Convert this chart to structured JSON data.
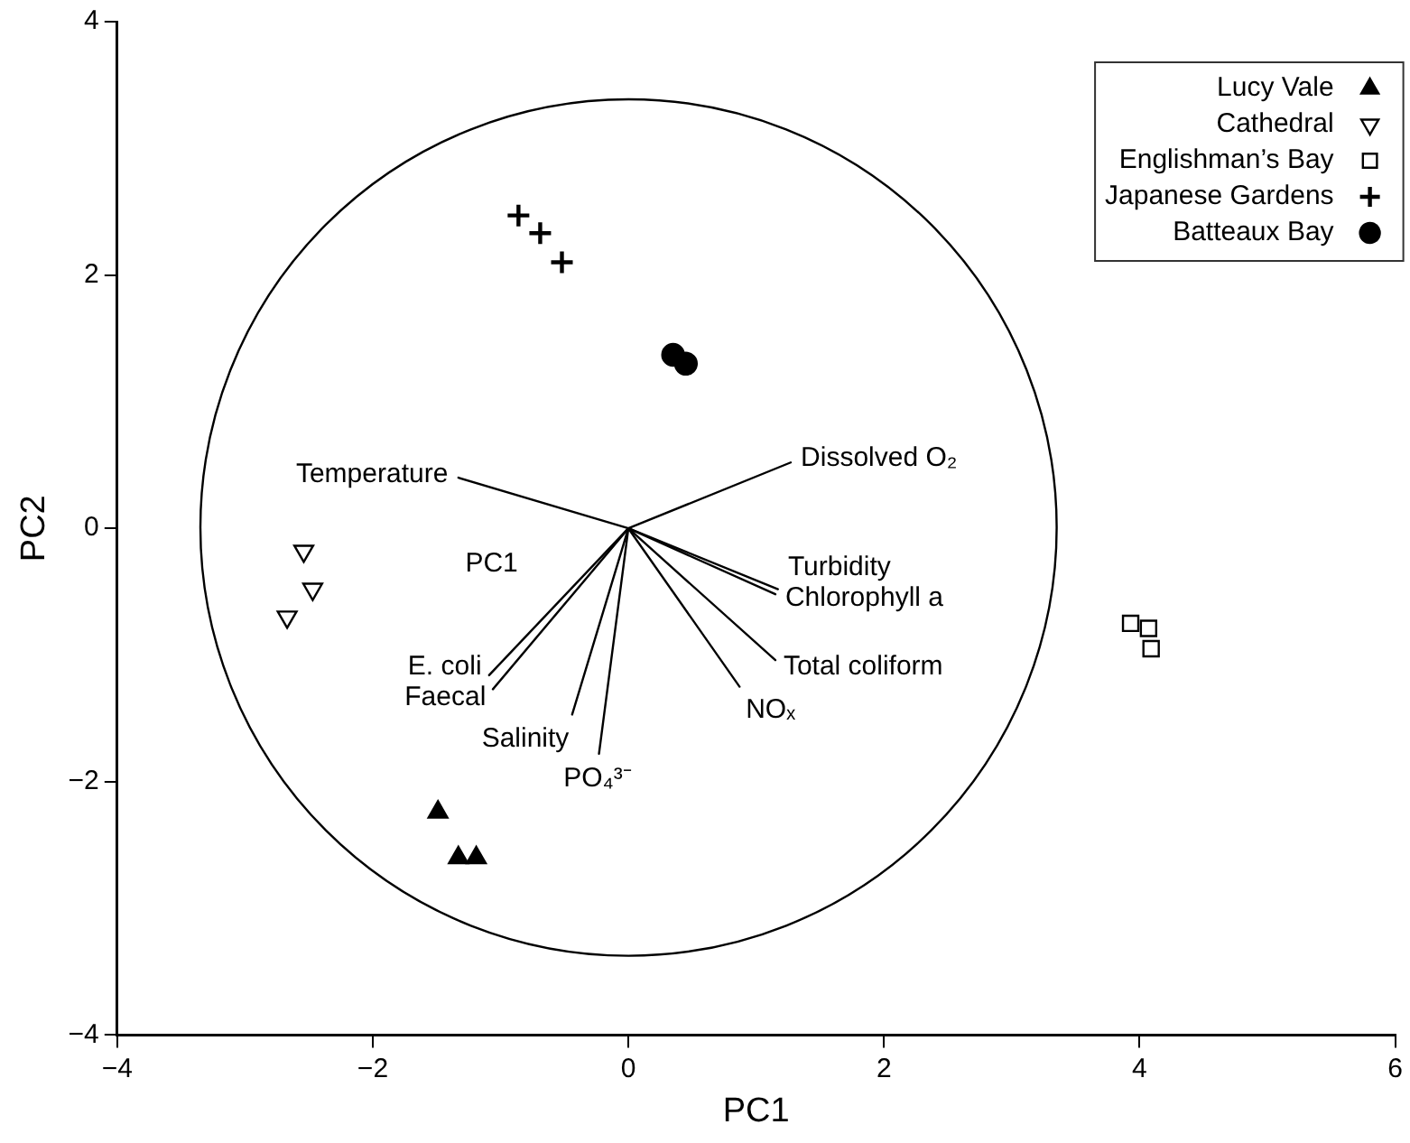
{
  "chart_data": {
    "type": "scatter",
    "xlabel": "PC1",
    "ylabel": "PC2",
    "xlim": [
      -4,
      6
    ],
    "ylim": [
      -4,
      4
    ],
    "xticks": [
      -4,
      -2,
      0,
      2,
      4,
      6
    ],
    "yticks": [
      -4,
      -2,
      0,
      2,
      4
    ],
    "grid": false,
    "legend": "top right",
    "series": [
      {
        "name": "Lucy Vale",
        "marker": "triangle",
        "color": "#000000",
        "x": [
          -1.49,
          -1.33,
          -1.19
        ],
        "values": [
          -2.24,
          -2.6,
          -2.6
        ]
      },
      {
        "name": "Cathedral",
        "marker": "triangle-down",
        "color": "#000000",
        "x": [
          -2.54,
          -2.47,
          -2.67
        ],
        "values": [
          -0.18,
          -0.48,
          -0.7
        ]
      },
      {
        "name": "Englishman’s Bay",
        "marker": "square",
        "color": "#000000",
        "x": [
          3.93,
          4.07,
          4.09
        ],
        "values": [
          -0.75,
          -0.79,
          -0.95
        ]
      },
      {
        "name": "Japanese Gardens",
        "marker": "cross",
        "color": "#000000",
        "x": [
          -0.86,
          -0.69,
          -0.52
        ],
        "values": [
          2.47,
          2.33,
          2.1
        ]
      },
      {
        "name": "Batteaux Bay",
        "marker": "circle",
        "color": "#000000",
        "x": [
          0.35,
          0.45
        ],
        "values": [
          1.37,
          1.3
        ]
      },
      {
        "name": "Temperature",
        "type": "line",
        "color": "#000000",
        "x": [
          0,
          -1.33
        ],
        "values": [
          0,
          0.4
        ]
      },
      {
        "name": "Dissolved O₂",
        "type": "line",
        "color": "#000000",
        "x": [
          0,
          1.27
        ],
        "values": [
          0,
          0.52
        ]
      },
      {
        "name": "Turbidity",
        "type": "line",
        "color": "#000000",
        "x": [
          0,
          1.17
        ],
        "values": [
          0,
          -0.48
        ]
      },
      {
        "name": "Chlorophyll a",
        "type": "line",
        "color": "#000000",
        "x": [
          0,
          1.15
        ],
        "values": [
          0,
          -0.52
        ]
      },
      {
        "name": "Total coliform",
        "type": "line",
        "color": "#000000",
        "x": [
          0,
          1.15
        ],
        "values": [
          0,
          -1.04
        ]
      },
      {
        "name": "NOₓ",
        "type": "line",
        "color": "#000000",
        "x": [
          0,
          0.87
        ],
        "values": [
          0,
          -1.25
        ]
      },
      {
        "name": "PO₄³⁻",
        "type": "line",
        "color": "#000000",
        "x": [
          0,
          -0.23
        ],
        "values": [
          0,
          -1.78
        ]
      },
      {
        "name": "Salinity",
        "type": "line",
        "color": "#000000",
        "x": [
          0,
          -0.44
        ],
        "values": [
          0,
          -1.47
        ]
      },
      {
        "name": "E. coli",
        "type": "line",
        "color": "#000000",
        "x": [
          0,
          -1.09
        ],
        "values": [
          0,
          -1.16
        ]
      },
      {
        "name": "Faecal",
        "type": "line",
        "color": "#000000",
        "x": [
          0,
          -1.06
        ],
        "values": [
          0,
          -1.27
        ]
      }
    ],
    "annotations": [
      "PC1"
    ]
  }
}
